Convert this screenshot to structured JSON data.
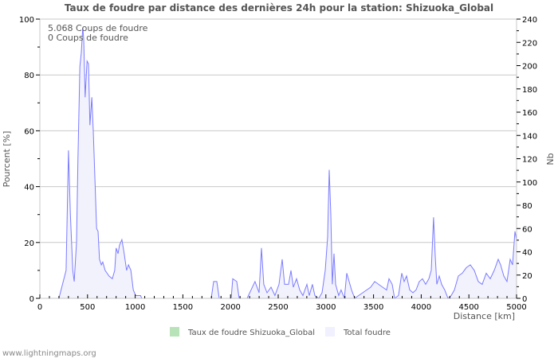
{
  "chart_data": {
    "type": "area",
    "title": "Taux de foudre par distance des dernières 24h pour la station: Shizuoka_Global",
    "xlabel": "Distance   [km]",
    "ylabel": "Pourcent   [%]",
    "y2label": "Nb",
    "xlim": [
      0,
      5000
    ],
    "ylim": [
      0,
      100
    ],
    "y2lim": [
      0,
      240
    ],
    "x_ticks": [
      "0",
      "500",
      "1000",
      "1500",
      "2000",
      "2500",
      "3000",
      "3500",
      "4000",
      "4500",
      "5000"
    ],
    "y_ticks": [
      "0",
      "20",
      "40",
      "60",
      "80",
      "100"
    ],
    "y2_ticks": [
      "0",
      "20",
      "40",
      "60",
      "80",
      "100",
      "120",
      "140",
      "160",
      "180",
      "200",
      "220",
      "240"
    ],
    "grid": true,
    "annotations": [
      "5.068  Coups de foudre",
      "0  Coups de foudre"
    ],
    "legend": {
      "placement": "bottom",
      "items": [
        {
          "label": "Taux de foudre Shizuoka_Global",
          "color": "#b8e3b8"
        },
        {
          "label": "Total foudre",
          "color": "#f0f0ff"
        }
      ]
    },
    "series": [
      {
        "name": "Taux de foudre Shizuoka_Global",
        "points": []
      },
      {
        "name": "Total foudre",
        "color": "#7b7bff",
        "points": [
          [
            200,
            0
          ],
          [
            275,
            10
          ],
          [
            300,
            53
          ],
          [
            320,
            30
          ],
          [
            345,
            10
          ],
          [
            360,
            6
          ],
          [
            385,
            20
          ],
          [
            400,
            50
          ],
          [
            420,
            83
          ],
          [
            435,
            88
          ],
          [
            450,
            97
          ],
          [
            460,
            93
          ],
          [
            475,
            72
          ],
          [
            495,
            85
          ],
          [
            510,
            84
          ],
          [
            525,
            62
          ],
          [
            545,
            72
          ],
          [
            560,
            60
          ],
          [
            575,
            45
          ],
          [
            595,
            25
          ],
          [
            610,
            24
          ],
          [
            625,
            14
          ],
          [
            645,
            12
          ],
          [
            660,
            13
          ],
          [
            685,
            10
          ],
          [
            725,
            8
          ],
          [
            760,
            7
          ],
          [
            785,
            10
          ],
          [
            800,
            18
          ],
          [
            820,
            16
          ],
          [
            835,
            19
          ],
          [
            860,
            21
          ],
          [
            885,
            16
          ],
          [
            910,
            10
          ],
          [
            930,
            12
          ],
          [
            955,
            10
          ],
          [
            980,
            3
          ],
          [
            1005,
            1
          ],
          [
            1055,
            1
          ],
          [
            1070,
            0
          ],
          [
            1798,
            0
          ],
          [
            1823,
            6
          ],
          [
            1856,
            6
          ],
          [
            1881,
            0
          ],
          [
            2007,
            0
          ],
          [
            2023,
            7
          ],
          [
            2065,
            6
          ],
          [
            2090,
            0
          ],
          [
            2174,
            0
          ],
          [
            2257,
            6
          ],
          [
            2299,
            2
          ],
          [
            2324,
            18
          ],
          [
            2349,
            5
          ],
          [
            2383,
            2
          ],
          [
            2425,
            4
          ],
          [
            2466,
            1
          ],
          [
            2508,
            5
          ],
          [
            2542,
            14
          ],
          [
            2567,
            5
          ],
          [
            2609,
            5
          ],
          [
            2634,
            10
          ],
          [
            2659,
            4
          ],
          [
            2692,
            7
          ],
          [
            2726,
            3
          ],
          [
            2759,
            1
          ],
          [
            2801,
            5
          ],
          [
            2826,
            1
          ],
          [
            2859,
            5
          ],
          [
            2885,
            1
          ],
          [
            2926,
            0
          ],
          [
            2960,
            2
          ],
          [
            2993,
            10
          ],
          [
            3018,
            22
          ],
          [
            3035,
            46
          ],
          [
            3052,
            30
          ],
          [
            3068,
            5
          ],
          [
            3085,
            16
          ],
          [
            3102,
            5
          ],
          [
            3135,
            1
          ],
          [
            3160,
            3
          ],
          [
            3194,
            0
          ],
          [
            3219,
            9
          ],
          [
            3244,
            6
          ],
          [
            3269,
            3
          ],
          [
            3303,
            0
          ],
          [
            3344,
            1
          ],
          [
            3386,
            2
          ],
          [
            3428,
            3
          ],
          [
            3470,
            4
          ],
          [
            3512,
            6
          ],
          [
            3553,
            5
          ],
          [
            3595,
            4
          ],
          [
            3637,
            3
          ],
          [
            3662,
            7
          ],
          [
            3696,
            5
          ],
          [
            3721,
            0
          ],
          [
            3762,
            1
          ],
          [
            3796,
            9
          ],
          [
            3821,
            6
          ],
          [
            3846,
            8
          ],
          [
            3880,
            3
          ],
          [
            3913,
            2
          ],
          [
            3946,
            3
          ],
          [
            3980,
            6
          ],
          [
            4013,
            7
          ],
          [
            4047,
            5
          ],
          [
            4080,
            7
          ],
          [
            4105,
            10
          ],
          [
            4130,
            29
          ],
          [
            4147,
            15
          ],
          [
            4164,
            5
          ],
          [
            4189,
            8
          ],
          [
            4214,
            5
          ],
          [
            4247,
            3
          ],
          [
            4281,
            0
          ],
          [
            4314,
            1
          ],
          [
            4348,
            3
          ],
          [
            4390,
            8
          ],
          [
            4431,
            9
          ],
          [
            4473,
            11
          ],
          [
            4515,
            12
          ],
          [
            4557,
            10
          ],
          [
            4599,
            6
          ],
          [
            4640,
            5
          ],
          [
            4682,
            9
          ],
          [
            4724,
            7
          ],
          [
            4766,
            10
          ],
          [
            4808,
            14
          ],
          [
            4833,
            12
          ],
          [
            4866,
            8
          ],
          [
            4900,
            6
          ],
          [
            4933,
            14
          ],
          [
            4958,
            12
          ],
          [
            4983,
            24
          ],
          [
            5000,
            21
          ]
        ]
      }
    ]
  },
  "footer": "www.lightningmaps.org"
}
